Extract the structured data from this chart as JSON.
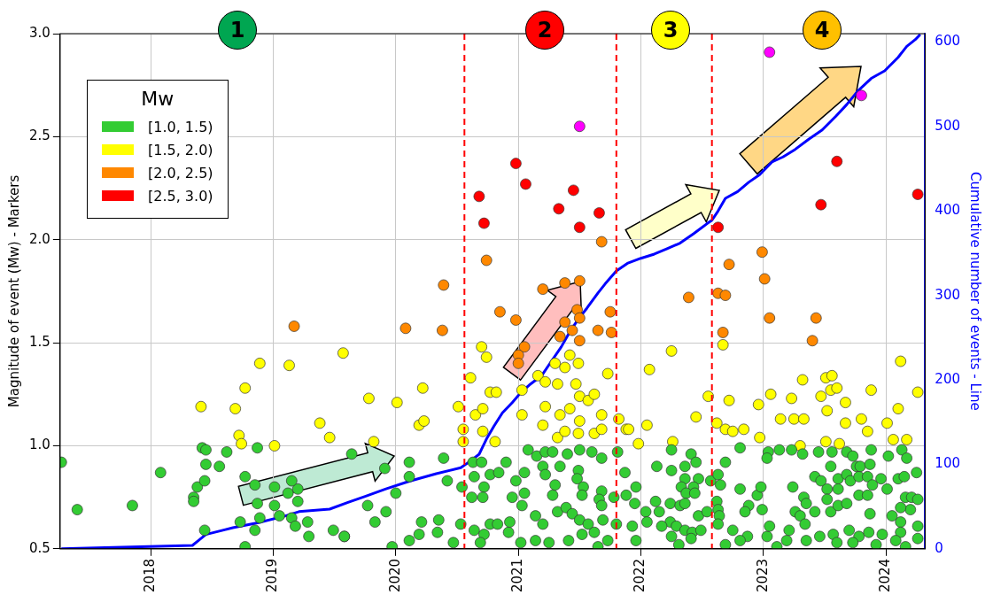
{
  "chart_data": {
    "type": "scatter",
    "ylabel": "Magnitude of event (Mw) - Markers",
    "y2label": "Cumulative number of events - Line",
    "legend_title": "Mw",
    "legend": "top left",
    "grid": true,
    "marker": "circle",
    "xlim": [
      2017.26,
      2024.32
    ],
    "xticks": [
      2018,
      2019,
      2020,
      2021,
      2022,
      2023,
      2024
    ],
    "ylim": [
      0.5,
      3.0
    ],
    "yticks": [
      0.5,
      {
        "value": 1,
        "label": "1.0"
      },
      1.5,
      {
        "value": 2,
        "label": "2.0"
      },
      2.5,
      {
        "value": 3,
        "label": "3.0"
      }
    ],
    "y2lim": [
      0,
      610
    ],
    "y2ticks": [
      0,
      100,
      200,
      300,
      400,
      500,
      600
    ],
    "annotations": [
      "1",
      "2",
      "3",
      "4"
    ],
    "ref_lines": [
      {
        "axis": "x",
        "value": 2020.56,
        "color": "#ff0000",
        "line_style": "dashed"
      },
      {
        "axis": "x",
        "value": 2021.8,
        "color": "#ff0000",
        "line_style": "dashed"
      },
      {
        "axis": "x",
        "value": 2022.58,
        "color": "#ff0000",
        "line_style": "dashed"
      }
    ],
    "series": [
      {
        "name": "[1.0, 1.5)",
        "color": "#33cc33",
        "x": [
          2017.27,
          2017.4,
          2017.85,
          2018.08,
          2018.42,
          2018.45,
          2018.45,
          2018.38,
          2018.44,
          2018.35,
          2018.35,
          2018.44,
          2018.56,
          2018.62,
          2018.77,
          2018.87,
          2018.85,
          2018.87,
          2018.73,
          2018.77,
          2018.89,
          2018.85,
          2019.01,
          2019.12,
          2019.2,
          2019.15,
          2019.2,
          2019.01,
          2019.05,
          2019.15,
          2019.18,
          2019.28,
          2019.29,
          2019.49,
          2019.58,
          2019.64,
          2019.91,
          2020.11,
          2020.11,
          2020.39,
          2020.0,
          2019.77,
          2019.92,
          2019.83,
          2019.58,
          2020.21,
          2020.35,
          2020.19,
          2020.11,
          2020.34,
          2020.42,
          2019.97,
          2020.54,
          2020.63,
          2020.7,
          2020.64,
          2020.72,
          2020.77,
          2020.84,
          2020.9,
          2020.62,
          2020.71,
          2020.53,
          2020.64,
          2020.72,
          2020.77,
          2020.83,
          2020.69,
          2020.47,
          2020.92,
          2020.95,
          2020.98,
          2021.05,
          2021.08,
          2021.15,
          2021.22,
          2021.28,
          2021.4,
          2021.5,
          2021.6,
          2021.68,
          2021.81,
          2021.2,
          2021.22,
          2021.34,
          2021.3,
          2021.28,
          2021.49,
          2021.48,
          2021.53,
          2021.52,
          2021.68,
          2021.66,
          2021.68,
          2021.78,
          2021.05,
          2021.03,
          2021.14,
          2021.2,
          2021.32,
          2021.39,
          2021.44,
          2021.5,
          2021.57,
          2021.62,
          2021.69,
          2021.73,
          2021.52,
          2021.41,
          2021.25,
          2021.14,
          2021.02,
          2020.93,
          2021.65,
          2021.8,
          2021.87,
          2021.96,
          2021.95,
          2021.88,
          2022.04,
          2021.93,
          2022.05,
          2021.96,
          2022.13,
          2022.25,
          2022.25,
          2022.36,
          2022.41,
          2022.45,
          2022.36,
          2022.47,
          2022.33,
          2022.43,
          2022.37,
          2022.44,
          2022.12,
          2022.24,
          2022.32,
          2022.36,
          2022.15,
          2022.24,
          2022.47,
          2022.17,
          2022.29,
          2022.36,
          2022.42,
          2022.49,
          2022.25,
          2022.41,
          2022.31,
          2022.57,
          2022.63,
          2022.65,
          2022.69,
          2022.62,
          2022.63,
          2022.64,
          2022.63,
          2022.54,
          2022.69,
          2022.75,
          2022.81,
          2022.81,
          2022.88,
          2022.85,
          2022.87,
          2022.81,
          2022.95,
          2022.98,
          2022.99,
          2023.04,
          2023.03,
          2023.13,
          2023.23,
          2023.32,
          2023.45,
          2023.56,
          2023.68,
          2023.73,
          2023.88,
          2024.02,
          2024.13,
          2024.17,
          2023.03,
          2023.05,
          2023.11,
          2023.24,
          2023.26,
          2023.3,
          2023.21,
          2023.33,
          2023.35,
          2023.34,
          2023.42,
          2023.42,
          2023.47,
          2023.52,
          2023.52,
          2023.55,
          2023.61,
          2023.61,
          2023.55,
          2023.61,
          2023.68,
          2023.46,
          2023.57,
          2023.68,
          2023.71,
          2023.76,
          2023.78,
          2023.79,
          2023.85,
          2023.87,
          2023.78,
          2023.85,
          2023.89,
          2023.87,
          2023.7,
          2023.78,
          2023.86,
          2023.97,
          2023.96,
          2024.01,
          2024.1,
          2024.15,
          2024.16,
          2024.21,
          2024.25,
          2024.26,
          2024.2,
          2024.12,
          2024.05,
          2024.12,
          2024.26,
          2024.12,
          2024.08,
          2024.26,
          2024.16,
          2023.92,
          2023.73,
          2023.6,
          2023.35,
          2023.19
        ],
        "values": [
          0.92,
          0.69,
          0.71,
          0.87,
          0.99,
          0.98,
          0.91,
          0.8,
          0.83,
          0.75,
          0.73,
          0.59,
          0.9,
          0.97,
          0.85,
          0.99,
          0.81,
          0.72,
          0.63,
          0.51,
          0.65,
          0.59,
          0.8,
          0.77,
          0.79,
          0.83,
          0.73,
          0.71,
          0.66,
          0.65,
          0.61,
          0.63,
          0.56,
          0.59,
          0.56,
          0.96,
          0.89,
          0.92,
          0.85,
          0.94,
          0.77,
          0.71,
          0.68,
          0.63,
          0.56,
          0.63,
          0.64,
          0.57,
          0.54,
          0.58,
          0.83,
          0.51,
          0.8,
          0.92,
          0.92,
          0.85,
          0.8,
          0.86,
          0.87,
          0.92,
          0.75,
          0.75,
          0.62,
          0.59,
          0.57,
          0.62,
          0.62,
          0.53,
          0.53,
          0.58,
          0.75,
          0.83,
          0.87,
          0.98,
          0.95,
          0.97,
          0.97,
          0.96,
          0.98,
          0.97,
          0.94,
          0.97,
          0.9,
          0.86,
          0.9,
          0.81,
          0.76,
          0.88,
          0.84,
          0.8,
          0.76,
          0.78,
          0.74,
          0.71,
          0.75,
          0.77,
          0.71,
          0.66,
          0.62,
          0.68,
          0.7,
          0.67,
          0.64,
          0.62,
          0.58,
          0.64,
          0.54,
          0.57,
          0.54,
          0.53,
          0.54,
          0.53,
          0.63,
          0.51,
          0.62,
          0.87,
          0.8,
          0.72,
          0.76,
          0.68,
          0.61,
          0.63,
          0.54,
          0.9,
          0.98,
          0.88,
          0.9,
          0.96,
          0.92,
          0.84,
          0.84,
          0.8,
          0.8,
          0.77,
          0.77,
          0.73,
          0.72,
          0.71,
          0.72,
          0.68,
          0.63,
          0.66,
          0.61,
          0.61,
          0.59,
          0.58,
          0.59,
          0.56,
          0.55,
          0.52,
          0.83,
          0.86,
          0.81,
          0.92,
          0.73,
          0.69,
          0.66,
          0.62,
          0.68,
          0.52,
          0.59,
          0.99,
          0.79,
          0.71,
          0.68,
          0.56,
          0.54,
          0.76,
          0.8,
          0.69,
          0.97,
          0.94,
          0.98,
          0.98,
          0.96,
          0.97,
          0.97,
          0.97,
          0.95,
          0.98,
          0.95,
          0.98,
          0.94,
          0.56,
          0.61,
          0.51,
          0.8,
          0.68,
          0.66,
          0.59,
          0.75,
          0.72,
          0.62,
          0.68,
          0.85,
          0.83,
          0.79,
          0.74,
          0.9,
          0.84,
          0.79,
          0.68,
          0.71,
          0.72,
          0.56,
          0.57,
          0.86,
          0.83,
          0.9,
          0.85,
          0.9,
          0.85,
          0.91,
          0.76,
          0.76,
          0.81,
          0.67,
          0.59,
          0.56,
          0.58,
          0.57,
          0.84,
          0.79,
          0.84,
          0.85,
          0.75,
          0.75,
          0.87,
          0.74,
          0.69,
          0.7,
          0.66,
          0.63,
          0.61,
          0.58,
          0.54,
          0.55,
          0.51,
          0.52,
          0.53,
          0.53,
          0.54,
          0.54
        ]
      },
      {
        "name": "[1.5, 2.0)",
        "color": "#ffff00",
        "x": [
          2018.41,
          2018.69,
          2018.77,
          2018.89,
          2019.13,
          2018.72,
          2018.74,
          2019.01,
          2019.38,
          2019.46,
          2019.57,
          2019.78,
          2019.82,
          2020.01,
          2020.22,
          2020.19,
          2020.23,
          2020.51,
          2020.55,
          2020.55,
          2020.61,
          2020.7,
          2020.74,
          2020.77,
          2020.82,
          2020.65,
          2020.71,
          2020.71,
          2020.81,
          2021.03,
          2021.03,
          2021.16,
          2021.22,
          2021.2,
          2021.3,
          2021.38,
          2021.42,
          2021.49,
          2021.32,
          2021.47,
          2021.73,
          2021.22,
          2021.34,
          2021.42,
          2021.5,
          2021.57,
          2021.62,
          2021.68,
          2021.5,
          2021.49,
          2021.32,
          2021.38,
          2021.62,
          2021.68,
          2021.82,
          2021.88,
          2022.25,
          2022.07,
          2022.55,
          2022.05,
          2021.9,
          2021.98,
          2022.26,
          2022.45,
          2022.67,
          2022.72,
          2022.62,
          2022.69,
          2022.75,
          2022.84,
          2022.96,
          2022.97,
          2023.06,
          2023.14,
          2023.25,
          2023.33,
          2023.23,
          2023.32,
          2023.47,
          2023.51,
          2023.56,
          2023.55,
          2023.6,
          2023.52,
          2023.67,
          2023.67,
          2023.3,
          2023.51,
          2023.62,
          2023.8,
          2023.85,
          2023.88,
          2024.01,
          2024.1,
          2024.12,
          2024.17,
          2024.26,
          2024.06
        ],
        "values": [
          1.19,
          1.18,
          1.28,
          1.4,
          1.39,
          1.05,
          1.01,
          1.0,
          1.11,
          1.04,
          1.45,
          1.23,
          1.02,
          1.21,
          1.28,
          1.1,
          1.12,
          1.19,
          1.08,
          1.02,
          1.33,
          1.48,
          1.43,
          1.26,
          1.26,
          1.15,
          1.18,
          1.07,
          1.02,
          1.27,
          1.15,
          1.34,
          1.31,
          1.1,
          1.4,
          1.38,
          1.44,
          1.4,
          1.3,
          1.3,
          1.35,
          1.19,
          1.15,
          1.18,
          1.24,
          1.22,
          1.25,
          1.15,
          1.12,
          1.06,
          1.04,
          1.07,
          1.06,
          1.08,
          1.13,
          1.08,
          1.46,
          1.37,
          1.24,
          1.1,
          1.08,
          1.01,
          1.02,
          1.14,
          1.49,
          1.22,
          1.11,
          1.08,
          1.07,
          1.08,
          1.2,
          1.04,
          1.25,
          1.13,
          1.13,
          1.13,
          1.23,
          1.32,
          1.24,
          1.33,
          1.34,
          1.27,
          1.28,
          1.17,
          1.21,
          1.11,
          1.0,
          1.02,
          1.01,
          1.13,
          1.07,
          1.27,
          1.11,
          1.18,
          1.41,
          1.03,
          1.26,
          1.03
        ]
      },
      {
        "name": "[2.0, 2.5)",
        "color": "#ff8800",
        "x": [
          2019.17,
          2020.39,
          2020.74,
          2020.08,
          2020.38,
          2020.85,
          2020.98,
          2021.2,
          2021.38,
          2021.5,
          2021.68,
          2021.48,
          2021.5,
          2021.75,
          2021.38,
          2021.44,
          2021.34,
          2021.65,
          2021.76,
          2021.5,
          2021.05,
          2021.0,
          2021.0,
          2022.99,
          2022.72,
          2023.01,
          2022.39,
          2022.63,
          2022.69,
          2023.05,
          2023.43,
          2022.67,
          2023.4
        ],
        "values": [
          1.58,
          1.78,
          1.9,
          1.57,
          1.56,
          1.65,
          1.61,
          1.76,
          1.79,
          1.8,
          1.99,
          1.66,
          1.62,
          1.65,
          1.6,
          1.56,
          1.53,
          1.56,
          1.55,
          1.51,
          1.48,
          1.44,
          1.4,
          1.94,
          1.88,
          1.81,
          1.72,
          1.74,
          1.73,
          1.62,
          1.62,
          1.55,
          1.51
        ]
      },
      {
        "name": "[2.5, 3.0)",
        "color": "#ff0000",
        "x": [
          2020.68,
          2020.72,
          2020.98,
          2021.06,
          2021.33,
          2021.45,
          2021.66,
          2021.5,
          2022.63,
          2023.47,
          2023.6,
          2024.26
        ],
        "values": [
          2.21,
          2.08,
          2.37,
          2.27,
          2.15,
          2.24,
          2.13,
          2.06,
          2.06,
          2.17,
          2.38,
          2.22
        ]
      },
      {
        "color": "#ff00ff",
        "x": [
          2021.5,
          2023.05,
          2023.8
        ],
        "values": [
          2.55,
          2.91,
          2.7
        ]
      },
      {
        "type": "line",
        "axis": "y2",
        "color": "#0000ff",
        "marker": "none",
        "x": [
          2017.27,
          2018.34,
          2018.39,
          2018.45,
          2018.67,
          2018.88,
          2019.1,
          2019.21,
          2019.46,
          2019.61,
          2019.75,
          2019.92,
          2020.11,
          2020.33,
          2020.53,
          2020.61,
          2020.68,
          2020.74,
          2020.8,
          2020.87,
          2020.95,
          2021.02,
          2021.09,
          2021.19,
          2021.26,
          2021.35,
          2021.42,
          2021.49,
          2021.56,
          2021.65,
          2021.71,
          2021.8,
          2021.89,
          2022.0,
          2022.11,
          2022.21,
          2022.32,
          2022.43,
          2022.54,
          2022.58,
          2022.63,
          2022.69,
          2022.79,
          2022.88,
          2022.97,
          2023.07,
          2023.16,
          2023.26,
          2023.37,
          2023.48,
          2023.59,
          2023.68,
          2023.77,
          2023.88,
          2023.99,
          2024.1,
          2024.17,
          2024.24,
          2024.28
        ],
        "values": [
          0,
          4,
          10,
          17,
          25,
          31,
          39,
          44,
          47,
          55,
          62,
          71,
          80,
          89,
          96,
          104,
          112,
          130,
          145,
          161,
          173,
          185,
          194,
          205,
          220,
          239,
          257,
          272,
          285,
          303,
          314,
          329,
          338,
          344,
          349,
          355,
          362,
          373,
          385,
          389,
          400,
          415,
          423,
          434,
          443,
          458,
          464,
          473,
          485,
          496,
          512,
          526,
          542,
          557,
          566,
          582,
          595,
          603,
          609
        ]
      }
    ]
  }
}
